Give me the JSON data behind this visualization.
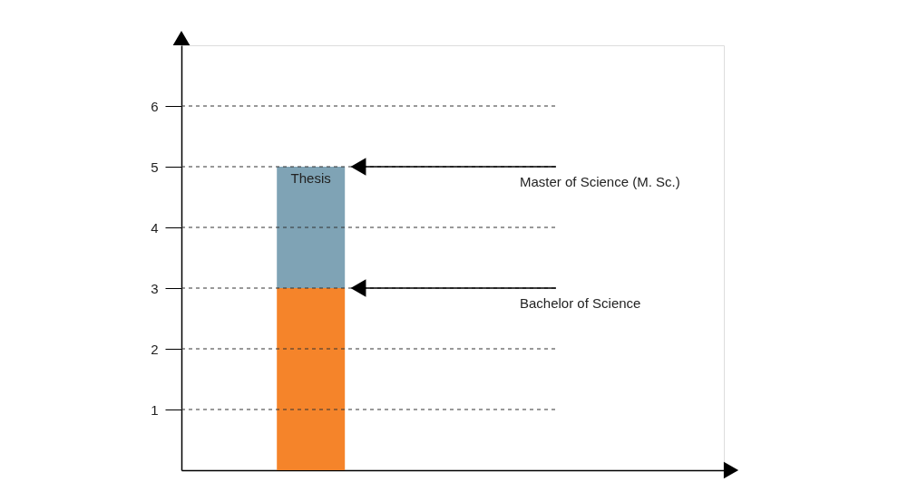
{
  "chart_data": {
    "type": "bar",
    "stacked": true,
    "categories": [
      null
    ],
    "series": [
      {
        "color": "#f5842a",
        "values": [
          3
        ]
      },
      {
        "color": "#7fa3b5",
        "values": [
          2
        ]
      }
    ],
    "ylim": [
      0,
      7
    ],
    "yticks": [
      1,
      2,
      3,
      4,
      5,
      6
    ],
    "grid": "y",
    "annotations": [
      "Thesis",
      "Master of Science (M. Sc.)",
      "Bachelor of Science"
    ]
  }
}
